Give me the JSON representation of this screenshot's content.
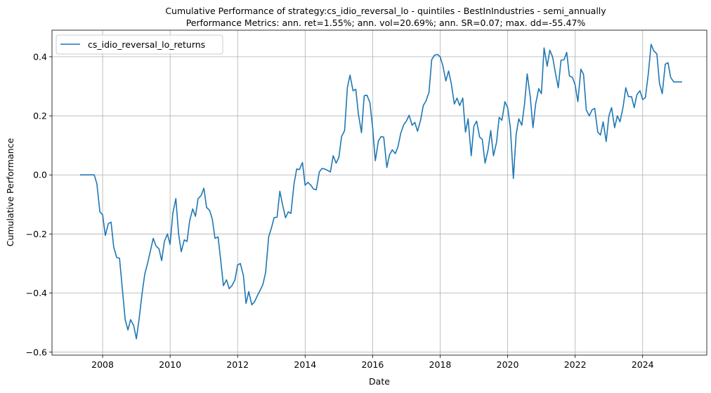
{
  "chart_data": {
    "type": "line",
    "title_lines": [
      "Cumulative Performance of strategy:cs_idio_reversal_lo - quintiles - BestInIndustries - semi_annually",
      "Performance Metrics: ann. ret=1.55%; ann. vol=20.69%; ann. SR=0.07; max. dd=-55.47%"
    ],
    "xlabel": "Date",
    "ylabel": "Cumulative Performance",
    "xlim": [
      2006.5,
      2025.9
    ],
    "ylim": [
      -0.61,
      0.49
    ],
    "x_ticks": [
      2008,
      2010,
      2012,
      2014,
      2016,
      2018,
      2020,
      2022,
      2024
    ],
    "x_tick_labels": [
      "2008",
      "2010",
      "2012",
      "2014",
      "2016",
      "2018",
      "2020",
      "2022",
      "2024"
    ],
    "y_ticks": [
      -0.6,
      -0.4,
      -0.2,
      0.0,
      0.2,
      0.4
    ],
    "y_tick_labels": [
      "−0.6",
      "−0.4",
      "−0.2",
      "0.0",
      "0.2",
      "0.4"
    ],
    "grid": true,
    "legend_position": "top-left",
    "series": [
      {
        "name": "cs_idio_reversal_lo_returns",
        "color": "#1f77b4",
        "points": [
          [
            2007.33,
            0.0
          ],
          [
            2007.42,
            0.0
          ],
          [
            2007.5,
            0.0
          ],
          [
            2007.58,
            0.0
          ],
          [
            2007.67,
            0.0
          ],
          [
            2007.75,
            0.0
          ],
          [
            2007.83,
            -0.03
          ],
          [
            2007.92,
            -0.125
          ],
          [
            2008.0,
            -0.135
          ],
          [
            2008.08,
            -0.205
          ],
          [
            2008.17,
            -0.165
          ],
          [
            2008.25,
            -0.16
          ],
          [
            2008.33,
            -0.245
          ],
          [
            2008.42,
            -0.28
          ],
          [
            2008.5,
            -0.282
          ],
          [
            2008.58,
            -0.38
          ],
          [
            2008.67,
            -0.49
          ],
          [
            2008.75,
            -0.525
          ],
          [
            2008.83,
            -0.49
          ],
          [
            2008.92,
            -0.51
          ],
          [
            2009.0,
            -0.555
          ],
          [
            2009.08,
            -0.49
          ],
          [
            2009.17,
            -0.4
          ],
          [
            2009.25,
            -0.335
          ],
          [
            2009.33,
            -0.3
          ],
          [
            2009.42,
            -0.255
          ],
          [
            2009.5,
            -0.215
          ],
          [
            2009.58,
            -0.24
          ],
          [
            2009.67,
            -0.25
          ],
          [
            2009.75,
            -0.29
          ],
          [
            2009.83,
            -0.225
          ],
          [
            2009.92,
            -0.2
          ],
          [
            2010.0,
            -0.235
          ],
          [
            2010.08,
            -0.13
          ],
          [
            2010.17,
            -0.08
          ],
          [
            2010.25,
            -0.2
          ],
          [
            2010.33,
            -0.26
          ],
          [
            2010.42,
            -0.22
          ],
          [
            2010.5,
            -0.225
          ],
          [
            2010.58,
            -0.155
          ],
          [
            2010.67,
            -0.115
          ],
          [
            2010.75,
            -0.14
          ],
          [
            2010.83,
            -0.08
          ],
          [
            2010.92,
            -0.07
          ],
          [
            2011.0,
            -0.045
          ],
          [
            2011.08,
            -0.11
          ],
          [
            2011.17,
            -0.12
          ],
          [
            2011.25,
            -0.15
          ],
          [
            2011.33,
            -0.215
          ],
          [
            2011.42,
            -0.21
          ],
          [
            2011.5,
            -0.29
          ],
          [
            2011.58,
            -0.375
          ],
          [
            2011.67,
            -0.355
          ],
          [
            2011.75,
            -0.385
          ],
          [
            2011.83,
            -0.375
          ],
          [
            2011.92,
            -0.355
          ],
          [
            2012.0,
            -0.305
          ],
          [
            2012.08,
            -0.3
          ],
          [
            2012.17,
            -0.34
          ],
          [
            2012.25,
            -0.435
          ],
          [
            2012.33,
            -0.395
          ],
          [
            2012.42,
            -0.44
          ],
          [
            2012.5,
            -0.43
          ],
          [
            2012.58,
            -0.41
          ],
          [
            2012.67,
            -0.39
          ],
          [
            2012.75,
            -0.37
          ],
          [
            2012.83,
            -0.33
          ],
          [
            2012.92,
            -0.21
          ],
          [
            2013.0,
            -0.18
          ],
          [
            2013.08,
            -0.145
          ],
          [
            2013.17,
            -0.143
          ],
          [
            2013.25,
            -0.055
          ],
          [
            2013.33,
            -0.1
          ],
          [
            2013.42,
            -0.145
          ],
          [
            2013.5,
            -0.125
          ],
          [
            2013.58,
            -0.13
          ],
          [
            2013.67,
            -0.03
          ],
          [
            2013.75,
            0.02
          ],
          [
            2013.83,
            0.018
          ],
          [
            2013.92,
            0.042
          ],
          [
            2014.0,
            -0.035
          ],
          [
            2014.08,
            -0.025
          ],
          [
            2014.17,
            -0.035
          ],
          [
            2014.25,
            -0.048
          ],
          [
            2014.33,
            -0.05
          ],
          [
            2014.42,
            0.01
          ],
          [
            2014.5,
            0.022
          ],
          [
            2014.58,
            0.02
          ],
          [
            2014.67,
            0.015
          ],
          [
            2014.75,
            0.01
          ],
          [
            2014.83,
            0.065
          ],
          [
            2014.92,
            0.04
          ],
          [
            2015.0,
            0.06
          ],
          [
            2015.08,
            0.13
          ],
          [
            2015.17,
            0.15
          ],
          [
            2015.25,
            0.295
          ],
          [
            2015.33,
            0.338
          ],
          [
            2015.42,
            0.285
          ],
          [
            2015.5,
            0.29
          ],
          [
            2015.58,
            0.205
          ],
          [
            2015.67,
            0.143
          ],
          [
            2015.75,
            0.268
          ],
          [
            2015.83,
            0.27
          ],
          [
            2015.92,
            0.245
          ],
          [
            2016.0,
            0.16
          ],
          [
            2016.08,
            0.048
          ],
          [
            2016.17,
            0.115
          ],
          [
            2016.25,
            0.13
          ],
          [
            2016.33,
            0.128
          ],
          [
            2016.42,
            0.025
          ],
          [
            2016.5,
            0.068
          ],
          [
            2016.58,
            0.085
          ],
          [
            2016.67,
            0.072
          ],
          [
            2016.75,
            0.095
          ],
          [
            2016.83,
            0.14
          ],
          [
            2016.92,
            0.17
          ],
          [
            2017.0,
            0.182
          ],
          [
            2017.08,
            0.202
          ],
          [
            2017.17,
            0.168
          ],
          [
            2017.25,
            0.178
          ],
          [
            2017.33,
            0.148
          ],
          [
            2017.42,
            0.185
          ],
          [
            2017.5,
            0.235
          ],
          [
            2017.58,
            0.25
          ],
          [
            2017.67,
            0.28
          ],
          [
            2017.75,
            0.39
          ],
          [
            2017.83,
            0.405
          ],
          [
            2017.92,
            0.408
          ],
          [
            2018.0,
            0.4
          ],
          [
            2018.08,
            0.37
          ],
          [
            2018.17,
            0.318
          ],
          [
            2018.25,
            0.352
          ],
          [
            2018.33,
            0.31
          ],
          [
            2018.42,
            0.24
          ],
          [
            2018.5,
            0.26
          ],
          [
            2018.58,
            0.235
          ],
          [
            2018.67,
            0.26
          ],
          [
            2018.75,
            0.145
          ],
          [
            2018.83,
            0.19
          ],
          [
            2018.92,
            0.065
          ],
          [
            2019.0,
            0.165
          ],
          [
            2019.08,
            0.182
          ],
          [
            2019.17,
            0.128
          ],
          [
            2019.25,
            0.12
          ],
          [
            2019.33,
            0.04
          ],
          [
            2019.42,
            0.085
          ],
          [
            2019.5,
            0.15
          ],
          [
            2019.58,
            0.065
          ],
          [
            2019.67,
            0.11
          ],
          [
            2019.75,
            0.195
          ],
          [
            2019.83,
            0.185
          ],
          [
            2019.92,
            0.248
          ],
          [
            2020.0,
            0.228
          ],
          [
            2020.08,
            0.16
          ],
          [
            2020.17,
            -0.012
          ],
          [
            2020.25,
            0.135
          ],
          [
            2020.33,
            0.19
          ],
          [
            2020.42,
            0.168
          ],
          [
            2020.5,
            0.24
          ],
          [
            2020.58,
            0.342
          ],
          [
            2020.67,
            0.265
          ],
          [
            2020.75,
            0.16
          ],
          [
            2020.83,
            0.24
          ],
          [
            2020.92,
            0.292
          ],
          [
            2021.0,
            0.275
          ],
          [
            2021.08,
            0.43
          ],
          [
            2021.17,
            0.368
          ],
          [
            2021.25,
            0.422
          ],
          [
            2021.33,
            0.4
          ],
          [
            2021.42,
            0.342
          ],
          [
            2021.5,
            0.295
          ],
          [
            2021.58,
            0.388
          ],
          [
            2021.67,
            0.39
          ],
          [
            2021.75,
            0.415
          ],
          [
            2021.83,
            0.335
          ],
          [
            2021.92,
            0.33
          ],
          [
            2022.0,
            0.305
          ],
          [
            2022.08,
            0.248
          ],
          [
            2022.17,
            0.358
          ],
          [
            2022.25,
            0.34
          ],
          [
            2022.33,
            0.22
          ],
          [
            2022.42,
            0.2
          ],
          [
            2022.5,
            0.22
          ],
          [
            2022.58,
            0.225
          ],
          [
            2022.67,
            0.145
          ],
          [
            2022.75,
            0.135
          ],
          [
            2022.83,
            0.18
          ],
          [
            2022.92,
            0.113
          ],
          [
            2023.0,
            0.2
          ],
          [
            2023.08,
            0.228
          ],
          [
            2023.17,
            0.16
          ],
          [
            2023.25,
            0.2
          ],
          [
            2023.33,
            0.18
          ],
          [
            2023.42,
            0.23
          ],
          [
            2023.5,
            0.295
          ],
          [
            2023.58,
            0.265
          ],
          [
            2023.67,
            0.265
          ],
          [
            2023.75,
            0.228
          ],
          [
            2023.83,
            0.272
          ],
          [
            2023.92,
            0.285
          ],
          [
            2024.0,
            0.255
          ],
          [
            2024.08,
            0.262
          ],
          [
            2024.17,
            0.345
          ],
          [
            2024.25,
            0.442
          ],
          [
            2024.33,
            0.42
          ],
          [
            2024.42,
            0.41
          ],
          [
            2024.5,
            0.31
          ],
          [
            2024.58,
            0.275
          ],
          [
            2024.67,
            0.375
          ],
          [
            2024.75,
            0.38
          ],
          [
            2024.83,
            0.33
          ],
          [
            2024.92,
            0.315
          ],
          [
            2025.0,
            0.315
          ],
          [
            2025.08,
            0.315
          ],
          [
            2025.17,
            0.315
          ]
        ]
      }
    ]
  }
}
